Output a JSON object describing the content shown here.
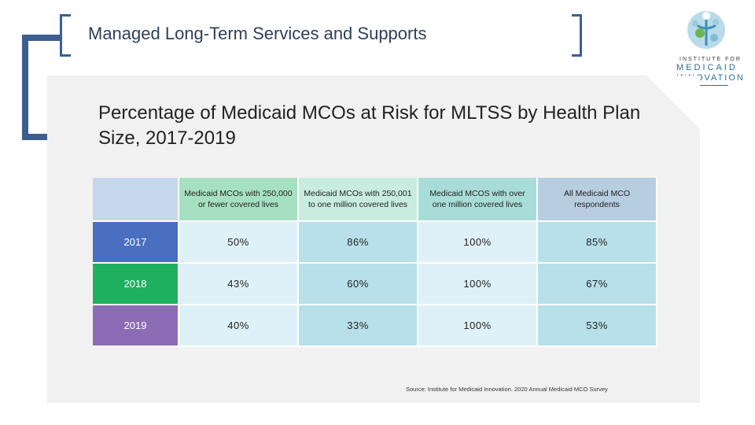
{
  "header": {
    "title": "Managed Long-Term Services and Supports"
  },
  "logo": {
    "line1": "INSTITUTE FOR",
    "line2": "MEDICAID",
    "line3": "INNOVATION"
  },
  "chart_data": {
    "type": "table",
    "title": "Percentage of Medicaid MCOs at Risk for MLTSS by Health Plan Size, 2017-2019",
    "columns": [
      "Medicaid MCOs with 250,000 or fewer covered lives",
      "Medicaid MCOs with 250,001 to one million covered lives",
      "Medicaid MCOS with over one million covered lives",
      "All Medicaid MCO respondents"
    ],
    "column_colors": [
      "#a5e1c0",
      "#c8ece0",
      "#a8dcd8",
      "#b7cde0"
    ],
    "rows": [
      {
        "year": "2017",
        "color": "#4a6fc1",
        "values": [
          "50%",
          "86%",
          "100%",
          "85%"
        ]
      },
      {
        "year": "2018",
        "color": "#1fb05f",
        "values": [
          "43%",
          "60%",
          "100%",
          "67%"
        ]
      },
      {
        "year": "2019",
        "color": "#8c6cb5",
        "values": [
          "40%",
          "33%",
          "100%",
          "53%"
        ]
      }
    ],
    "source": "Source: Institute for Medicaid Innovation. 2020 Annual Medicaid MCO Survey"
  }
}
